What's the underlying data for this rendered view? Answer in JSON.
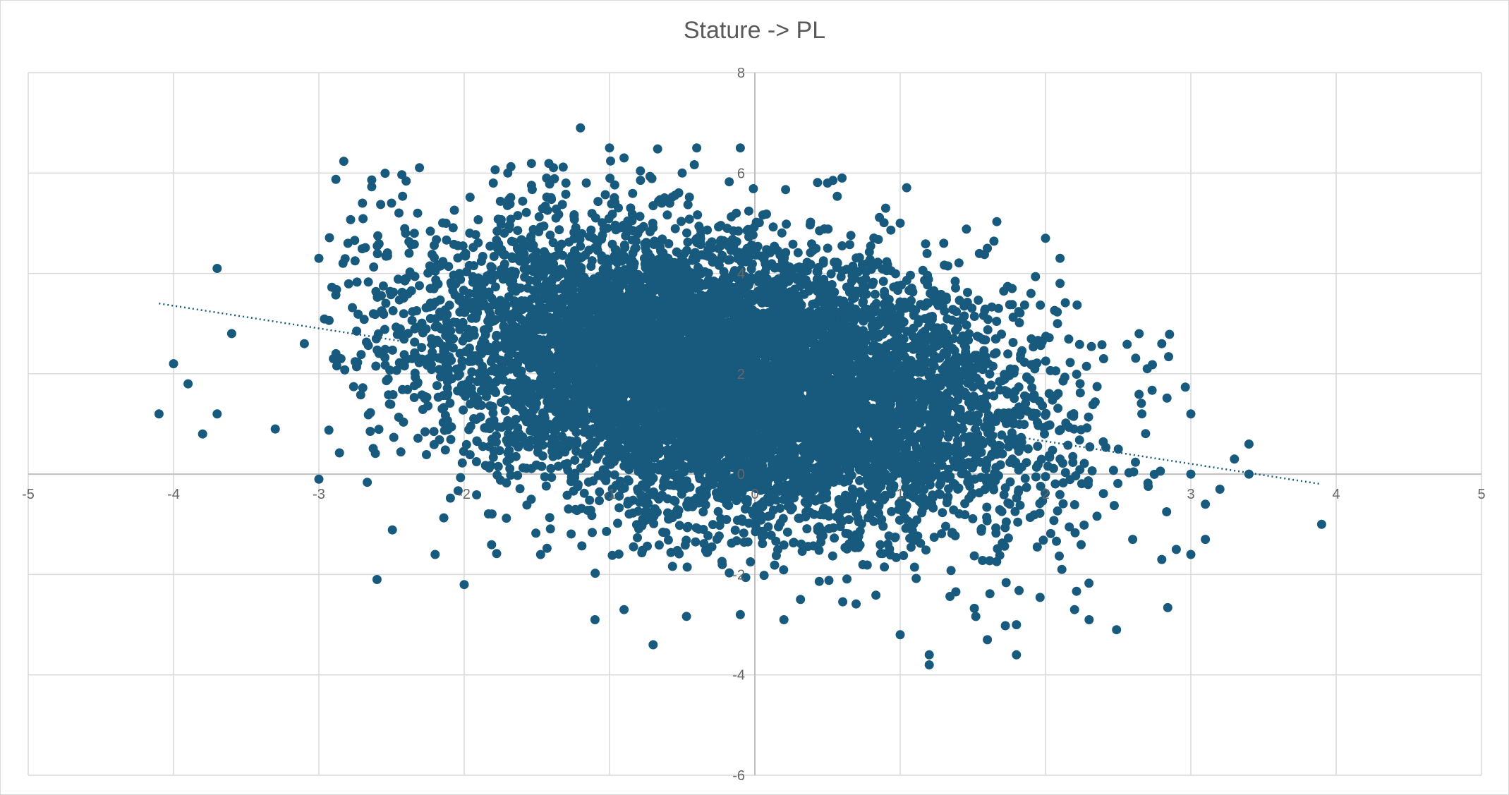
{
  "chart_data": {
    "type": "scatter",
    "title": "Stature -> PL",
    "xlabel": "",
    "ylabel": "",
    "xlim": [
      -5,
      5
    ],
    "ylim": [
      -6,
      8
    ],
    "x_ticks": [
      "-5",
      "-4",
      "-3",
      "-2",
      "-1",
      "0",
      "1",
      "2",
      "3",
      "4",
      "5"
    ],
    "y_ticks": [
      "-6",
      "-4",
      "-2",
      "0",
      "2",
      "4",
      "6",
      "8"
    ],
    "grid": true,
    "legend": "none",
    "marker_color": "#185A7D",
    "trendline": {
      "style": "dotted",
      "color": "#185A7D",
      "points": [
        {
          "x": -4.1,
          "y": 3.4
        },
        {
          "x": 3.9,
          "y": -0.2
        }
      ]
    },
    "core_cluster": {
      "approximate": true,
      "x_mean": -0.2,
      "x_sd": 1.0,
      "y_mean": 1.9,
      "y_sd": 1.35,
      "slope": -0.45,
      "count": 9000
    },
    "outliers": [
      {
        "x": -4.1,
        "y": 1.2
      },
      {
        "x": -4.0,
        "y": 2.2
      },
      {
        "x": -3.9,
        "y": 1.8
      },
      {
        "x": -3.8,
        "y": 0.8
      },
      {
        "x": -3.7,
        "y": 4.1
      },
      {
        "x": -3.7,
        "y": 1.2
      },
      {
        "x": -3.6,
        "y": 2.8
      },
      {
        "x": -3.3,
        "y": 0.9
      },
      {
        "x": -3.1,
        "y": 2.6
      },
      {
        "x": -3.0,
        "y": 4.3
      },
      {
        "x": -3.0,
        "y": -0.1
      },
      {
        "x": -2.9,
        "y": 2.3
      },
      {
        "x": -2.8,
        "y": 4.6
      },
      {
        "x": -2.7,
        "y": 5.4
      },
      {
        "x": -2.6,
        "y": -2.1
      },
      {
        "x": -2.5,
        "y": 5.4
      },
      {
        "x": -2.2,
        "y": -1.6
      },
      {
        "x": -2.0,
        "y": -2.2
      },
      {
        "x": -1.8,
        "y": 5.8
      },
      {
        "x": -1.7,
        "y": 6.0
      },
      {
        "x": -1.3,
        "y": 5.8
      },
      {
        "x": -1.2,
        "y": 6.9
      },
      {
        "x": -1.1,
        "y": -2.9
      },
      {
        "x": -1.0,
        "y": 6.5
      },
      {
        "x": -0.9,
        "y": 6.3
      },
      {
        "x": -0.9,
        "y": -2.7
      },
      {
        "x": -0.7,
        "y": -3.4
      },
      {
        "x": -0.4,
        "y": 6.5
      },
      {
        "x": -0.5,
        "y": 6.0
      },
      {
        "x": -0.1,
        "y": 6.5
      },
      {
        "x": -0.1,
        "y": -2.8
      },
      {
        "x": 0.2,
        "y": -2.9
      },
      {
        "x": 0.5,
        "y": 5.8
      },
      {
        "x": 0.6,
        "y": 5.9
      },
      {
        "x": 0.9,
        "y": 5.3
      },
      {
        "x": 1.0,
        "y": 5.0
      },
      {
        "x": 1.0,
        "y": -3.2
      },
      {
        "x": 1.2,
        "y": -3.8
      },
      {
        "x": 1.2,
        "y": -3.6
      },
      {
        "x": 1.3,
        "y": 4.6
      },
      {
        "x": 1.6,
        "y": 4.5
      },
      {
        "x": 1.6,
        "y": -3.3
      },
      {
        "x": 1.8,
        "y": -3.0
      },
      {
        "x": 1.8,
        "y": -3.6
      },
      {
        "x": 1.9,
        "y": 3.6
      },
      {
        "x": 2.0,
        "y": 4.7
      },
      {
        "x": 2.1,
        "y": 4.3
      },
      {
        "x": 2.1,
        "y": 3.8
      },
      {
        "x": 2.2,
        "y": -2.7
      },
      {
        "x": 2.3,
        "y": -2.9
      },
      {
        "x": 2.4,
        "y": 2.3
      },
      {
        "x": 2.6,
        "y": -1.3
      },
      {
        "x": 2.7,
        "y": 2.1
      },
      {
        "x": 2.8,
        "y": 2.6
      },
      {
        "x": 2.8,
        "y": -1.7
      },
      {
        "x": 2.9,
        "y": -1.5
      },
      {
        "x": 3.0,
        "y": 0.0
      },
      {
        "x": 3.0,
        "y": 1.2
      },
      {
        "x": 3.0,
        "y": -1.6
      },
      {
        "x": 3.1,
        "y": -0.6
      },
      {
        "x": 3.1,
        "y": -1.3
      },
      {
        "x": 3.2,
        "y": -0.3
      },
      {
        "x": 3.3,
        "y": 0.3
      },
      {
        "x": 3.4,
        "y": 0.6
      },
      {
        "x": 3.4,
        "y": 0.0
      },
      {
        "x": 3.9,
        "y": -1.0
      }
    ]
  }
}
